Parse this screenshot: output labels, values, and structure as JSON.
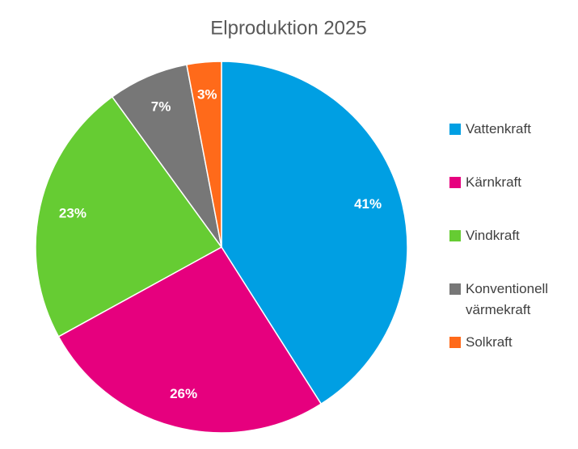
{
  "chart_data": {
    "type": "pie",
    "title": "Elproduktion 2025",
    "categories": [
      "Vattenkraft",
      "Kärnkraft",
      "Vindkraft",
      "Konventionell värmekraft",
      "Solkraft"
    ],
    "values": [
      41,
      26,
      23,
      7,
      3
    ],
    "value_labels": [
      "41%",
      "26%",
      "23%",
      "7%",
      "3%"
    ],
    "colors": [
      "#009fe3",
      "#e6007e",
      "#66cc33",
      "#777777",
      "#ff6a1a"
    ],
    "legend": "right"
  }
}
